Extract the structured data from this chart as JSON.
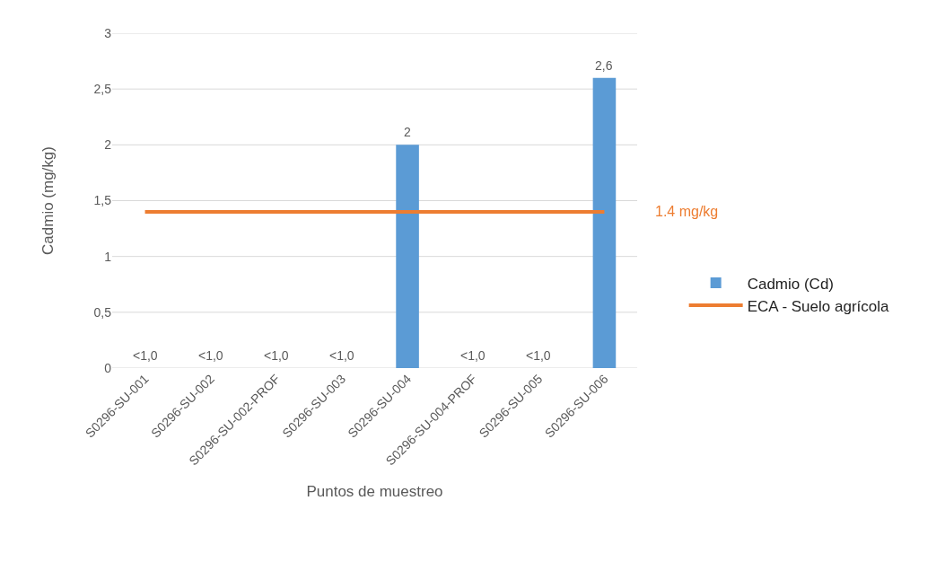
{
  "chart_data": {
    "type": "bar",
    "xlabel": "Puntos de muestreo",
    "ylabel": "Cadmio (mg/kg)",
    "categories": [
      "S0296-SU-001",
      "S0296-SU-002",
      "S0296-SU-002-PROF",
      "S0296-SU-003",
      "S0296-SU-004",
      "S0296-SU-004-PROF",
      "S0296-SU-005",
      "S0296-SU-006"
    ],
    "series": [
      {
        "name": "Cadmio (Cd)",
        "color": "#5b9bd5",
        "values": [
          null,
          null,
          null,
          null,
          2,
          null,
          null,
          2.6
        ],
        "value_labels": [
          "<1,0",
          "<1,0",
          "<1,0",
          "<1,0",
          "2",
          "<1,0",
          "<1,0",
          "2,6"
        ]
      },
      {
        "name": "ECA - Suelo agrícola",
        "type": "line",
        "color": "#ed7d31",
        "values": [
          1.4,
          1.4,
          1.4,
          1.4,
          1.4,
          1.4,
          1.4,
          1.4
        ]
      }
    ],
    "annotations": [
      "1.4 mg/kg"
    ],
    "ylim": [
      0,
      3
    ],
    "yticks": [
      0,
      {
        "value": 0.5,
        "label": "0,5"
      },
      1,
      {
        "value": 1.5,
        "label": "1,5"
      },
      2,
      {
        "value": 2.5,
        "label": "2,5"
      },
      3
    ],
    "grid": "y",
    "legend": "right",
    "marker": "none",
    "line_style": "solid"
  }
}
